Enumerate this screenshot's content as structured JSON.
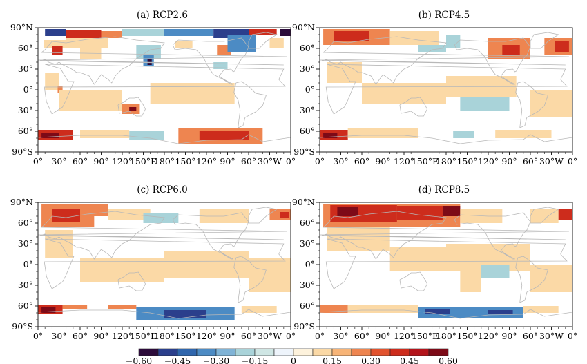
{
  "figure": {
    "panels": [
      {
        "id": "a",
        "title": "(a)    RCP2.6",
        "features": [
          {
            "lon": [
              10,
              40
            ],
            "lat": [
              78,
              88
            ],
            "v": -0.45
          },
          {
            "lon": [
              40,
              90
            ],
            "lat": [
              72,
              86
            ],
            "v": 0.45
          },
          {
            "lon": [
              90,
              120
            ],
            "lat": [
              75,
              85
            ],
            "v": 0.3
          },
          {
            "lon": [
              120,
              180
            ],
            "lat": [
              78,
              88
            ],
            "v": -0.15
          },
          {
            "lon": [
              180,
              250
            ],
            "lat": [
              78,
              88
            ],
            "v": -0.3
          },
          {
            "lon": [
              250,
              300
            ],
            "lat": [
              75,
              88
            ],
            "v": -0.45
          },
          {
            "lon": [
              300,
              340
            ],
            "lat": [
              80,
              88
            ],
            "v": 0.45
          },
          {
            "lon": [
              345,
              360
            ],
            "lat": [
              78,
              88
            ],
            "v": -0.6
          },
          {
            "lon": [
              8,
              40
            ],
            "lat": [
              60,
              72
            ],
            "v": 0.15
          },
          {
            "lon": [
              20,
              35
            ],
            "lat": [
              50,
              64
            ],
            "v": 0.45
          },
          {
            "lon": [
              40,
              100
            ],
            "lat": [
              60,
              75
            ],
            "v": 0.15
          },
          {
            "lon": [
              60,
              90
            ],
            "lat": [
              45,
              60
            ],
            "v": 0.15
          },
          {
            "lon": [
              140,
              175
            ],
            "lat": [
              45,
              65
            ],
            "v": -0.15
          },
          {
            "lon": [
              150,
              165
            ],
            "lat": [
              35,
              50
            ],
            "v": -0.3
          },
          {
            "lon": [
              156,
              162
            ],
            "lat": [
              36,
              44
            ],
            "v": -0.6
          },
          {
            "lon": [
              195,
              220
            ],
            "lat": [
              60,
              70
            ],
            "v": 0.15
          },
          {
            "lon": [
              255,
              275
            ],
            "lat": [
              50,
              65
            ],
            "v": 0.3
          },
          {
            "lon": [
              270,
              310
            ],
            "lat": [
              55,
              80
            ],
            "v": -0.3
          },
          {
            "lon": [
              330,
              350
            ],
            "lat": [
              60,
              75
            ],
            "v": 0.15
          },
          {
            "lon": [
              10,
              30
            ],
            "lat": [
              0,
              25
            ],
            "v": 0.15
          },
          {
            "lon": [
              28,
              35
            ],
            "lat": [
              -5,
              5
            ],
            "v": 0.3
          },
          {
            "lon": [
              30,
              120
            ],
            "lat": [
              -30,
              0
            ],
            "v": 0.15
          },
          {
            "lon": [
              120,
              145
            ],
            "lat": [
              -35,
              -20
            ],
            "v": 0.3
          },
          {
            "lon": [
              130,
              140
            ],
            "lat": [
              -30,
              -25
            ],
            "v": 0.6
          },
          {
            "lon": [
              160,
              280
            ],
            "lat": [
              -20,
              10
            ],
            "v": 0.15
          },
          {
            "lon": [
              250,
              270
            ],
            "lat": [
              30,
              40
            ],
            "v": -0.15
          },
          {
            "lon": [
              0,
              50
            ],
            "lat": [
              -72,
              -58
            ],
            "v": 0.45
          },
          {
            "lon": [
              5,
              30
            ],
            "lat": [
              -70,
              -62
            ],
            "v": 0.6
          },
          {
            "lon": [
              60,
              130
            ],
            "lat": [
              -70,
              -58
            ],
            "v": 0.15
          },
          {
            "lon": [
              130,
              180
            ],
            "lat": [
              -72,
              -60
            ],
            "v": -0.15
          },
          {
            "lon": [
              200,
              320
            ],
            "lat": [
              -78,
              -56
            ],
            "v": 0.3
          },
          {
            "lon": [
              230,
              300
            ],
            "lat": [
              -72,
              -60
            ],
            "v": 0.45
          }
        ]
      },
      {
        "id": "b",
        "title": "(b)    RCP4.5",
        "features": [
          {
            "lon": [
              5,
              100
            ],
            "lat": [
              65,
              88
            ],
            "v": 0.3
          },
          {
            "lon": [
              20,
              70
            ],
            "lat": [
              70,
              85
            ],
            "v": 0.45
          },
          {
            "lon": [
              100,
              170
            ],
            "lat": [
              65,
              85
            ],
            "v": 0.15
          },
          {
            "lon": [
              140,
              180
            ],
            "lat": [
              55,
              65
            ],
            "v": -0.15
          },
          {
            "lon": [
              180,
              200
            ],
            "lat": [
              60,
              80
            ],
            "v": -0.15
          },
          {
            "lon": [
              240,
              300
            ],
            "lat": [
              45,
              75
            ],
            "v": 0.3
          },
          {
            "lon": [
              260,
              285
            ],
            "lat": [
              50,
              65
            ],
            "v": 0.45
          },
          {
            "lon": [
              320,
              360
            ],
            "lat": [
              50,
              75
            ],
            "v": 0.3
          },
          {
            "lon": [
              335,
              355
            ],
            "lat": [
              55,
              70
            ],
            "v": 0.45
          },
          {
            "lon": [
              10,
              60
            ],
            "lat": [
              10,
              40
            ],
            "v": 0.15
          },
          {
            "lon": [
              60,
              180
            ],
            "lat": [
              -20,
              10
            ],
            "v": 0.15
          },
          {
            "lon": [
              180,
              280
            ],
            "lat": [
              -10,
              20
            ],
            "v": 0.15
          },
          {
            "lon": [
              200,
              270
            ],
            "lat": [
              -30,
              -10
            ],
            "v": -0.15
          },
          {
            "lon": [
              300,
              360
            ],
            "lat": [
              -40,
              0
            ],
            "v": 0.15
          },
          {
            "lon": [
              0,
              40
            ],
            "lat": [
              -72,
              -58
            ],
            "v": 0.45
          },
          {
            "lon": [
              5,
              25
            ],
            "lat": [
              -70,
              -62
            ],
            "v": 0.6
          },
          {
            "lon": [
              40,
              140
            ],
            "lat": [
              -70,
              -55
            ],
            "v": 0.15
          },
          {
            "lon": [
              190,
              220
            ],
            "lat": [
              -70,
              -60
            ],
            "v": -0.15
          },
          {
            "lon": [
              250,
              330
            ],
            "lat": [
              -70,
              -58
            ],
            "v": 0.15
          }
        ]
      },
      {
        "id": "c",
        "title": "(c)    RCP6.0",
        "features": [
          {
            "lon": [
              5,
              80
            ],
            "lat": [
              55,
              88
            ],
            "v": 0.3
          },
          {
            "lon": [
              20,
              60
            ],
            "lat": [
              62,
              80
            ],
            "v": 0.45
          },
          {
            "lon": [
              60,
              100
            ],
            "lat": [
              70,
              88
            ],
            "v": 0.3
          },
          {
            "lon": [
              100,
              160
            ],
            "lat": [
              65,
              80
            ],
            "v": 0.15
          },
          {
            "lon": [
              150,
              200
            ],
            "lat": [
              60,
              75
            ],
            "v": -0.15
          },
          {
            "lon": [
              230,
              300
            ],
            "lat": [
              60,
              80
            ],
            "v": 0.15
          },
          {
            "lon": [
              330,
              360
            ],
            "lat": [
              65,
              80
            ],
            "v": 0.3
          },
          {
            "lon": [
              345,
              358
            ],
            "lat": [
              68,
              76
            ],
            "v": 0.45
          },
          {
            "lon": [
              10,
              50
            ],
            "lat": [
              10,
              50
            ],
            "v": 0.15
          },
          {
            "lon": [
              60,
              180
            ],
            "lat": [
              -25,
              10
            ],
            "v": 0.15
          },
          {
            "lon": [
              180,
              300
            ],
            "lat": [
              -20,
              20
            ],
            "v": 0.15
          },
          {
            "lon": [
              300,
              360
            ],
            "lat": [
              -40,
              10
            ],
            "v": 0.15
          },
          {
            "lon": [
              0,
              35
            ],
            "lat": [
              -72,
              -58
            ],
            "v": 0.45
          },
          {
            "lon": [
              5,
              25
            ],
            "lat": [
              -70,
              -62
            ],
            "v": 0.6
          },
          {
            "lon": [
              35,
              70
            ],
            "lat": [
              -65,
              -58
            ],
            "v": 0.3
          },
          {
            "lon": [
              100,
              140
            ],
            "lat": [
              -65,
              -58
            ],
            "v": 0.3
          },
          {
            "lon": [
              140,
              280
            ],
            "lat": [
              -80,
              -62
            ],
            "v": -0.3
          },
          {
            "lon": [
              180,
              240
            ],
            "lat": [
              -78,
              -66
            ],
            "v": -0.45
          },
          {
            "lon": [
              290,
              340
            ],
            "lat": [
              -70,
              -60
            ],
            "v": 0.15
          }
        ]
      },
      {
        "id": "d",
        "title": "(d)    RCP8.5",
        "features": [
          {
            "lon": [
              5,
              200
            ],
            "lat": [
              55,
              88
            ],
            "v": 0.3
          },
          {
            "lon": [
              15,
              110
            ],
            "lat": [
              62,
              86
            ],
            "v": 0.45
          },
          {
            "lon": [
              25,
              55
            ],
            "lat": [
              70,
              84
            ],
            "v": 0.6
          },
          {
            "lon": [
              110,
              175
            ],
            "lat": [
              65,
              85
            ],
            "v": 0.45
          },
          {
            "lon": [
              175,
              200
            ],
            "lat": [
              70,
              85
            ],
            "v": 0.6
          },
          {
            "lon": [
              200,
              260
            ],
            "lat": [
              60,
              80
            ],
            "v": 0.15
          },
          {
            "lon": [
              300,
              340
            ],
            "lat": [
              60,
              80
            ],
            "v": 0.15
          },
          {
            "lon": [
              340,
              360
            ],
            "lat": [
              65,
              80
            ],
            "v": 0.45
          },
          {
            "lon": [
              10,
              100
            ],
            "lat": [
              20,
              55
            ],
            "v": 0.15
          },
          {
            "lon": [
              100,
              180
            ],
            "lat": [
              -10,
              25
            ],
            "v": 0.15
          },
          {
            "lon": [
              180,
              300
            ],
            "lat": [
              -10,
              30
            ],
            "v": 0.15
          },
          {
            "lon": [
              200,
              230
            ],
            "lat": [
              -40,
              -10
            ],
            "v": 0.15
          },
          {
            "lon": [
              230,
              270
            ],
            "lat": [
              -20,
              0
            ],
            "v": -0.15
          },
          {
            "lon": [
              300,
              360
            ],
            "lat": [
              -40,
              0
            ],
            "v": 0.15
          },
          {
            "lon": [
              0,
              40
            ],
            "lat": [
              -70,
              -58
            ],
            "v": 0.3
          },
          {
            "lon": [
              40,
              140
            ],
            "lat": [
              -70,
              -58
            ],
            "v": 0.15
          },
          {
            "lon": [
              140,
              290
            ],
            "lat": [
              -78,
              -62
            ],
            "v": -0.3
          },
          {
            "lon": [
              150,
              185
            ],
            "lat": [
              -72,
              -64
            ],
            "v": -0.45
          },
          {
            "lon": [
              240,
              275
            ],
            "lat": [
              -72,
              -66
            ],
            "v": -0.45
          },
          {
            "lon": [
              290,
              340
            ],
            "lat": [
              -70,
              -60
            ],
            "v": 0.15
          }
        ]
      }
    ],
    "x_ticks": [
      "0°",
      "30°",
      "60°",
      "90°",
      "120°",
      "150°E",
      "180°",
      "150°",
      "120°",
      "90°",
      "60°",
      "30°W",
      "0°"
    ],
    "y_ticks": [
      "90°N",
      "60°",
      "30°",
      "0°",
      "30°",
      "60°",
      "90°S"
    ],
    "colorbar": {
      "levels": [
        -0.6,
        -0.525,
        -0.45,
        -0.375,
        -0.3,
        -0.225,
        -0.15,
        -0.075,
        0,
        0.075,
        0.15,
        0.225,
        0.3,
        0.375,
        0.45,
        0.525,
        0.6
      ],
      "colors": [
        "#2c0b3a",
        "#2b3f8c",
        "#2f66ad",
        "#4c8bc4",
        "#7fb3d6",
        "#a9d3d9",
        "#cfe6e4",
        "#eef4fb",
        "#fdf2dc",
        "#fbd9a6",
        "#f7b477",
        "#ee8550",
        "#e2532e",
        "#cd2c1c",
        "#b3141b",
        "#7d0a17"
      ],
      "labels": [
        "−0.60",
        "−0.45",
        "−0.30",
        "−0.15",
        "0",
        "0.15",
        "0.30",
        "0.45",
        "0.60"
      ],
      "label_values": [
        -0.6,
        -0.45,
        -0.3,
        -0.15,
        0,
        0.15,
        0.3,
        0.45,
        0.6
      ]
    },
    "coast_color": "#b8b8b8",
    "frame_color": "#222222"
  }
}
